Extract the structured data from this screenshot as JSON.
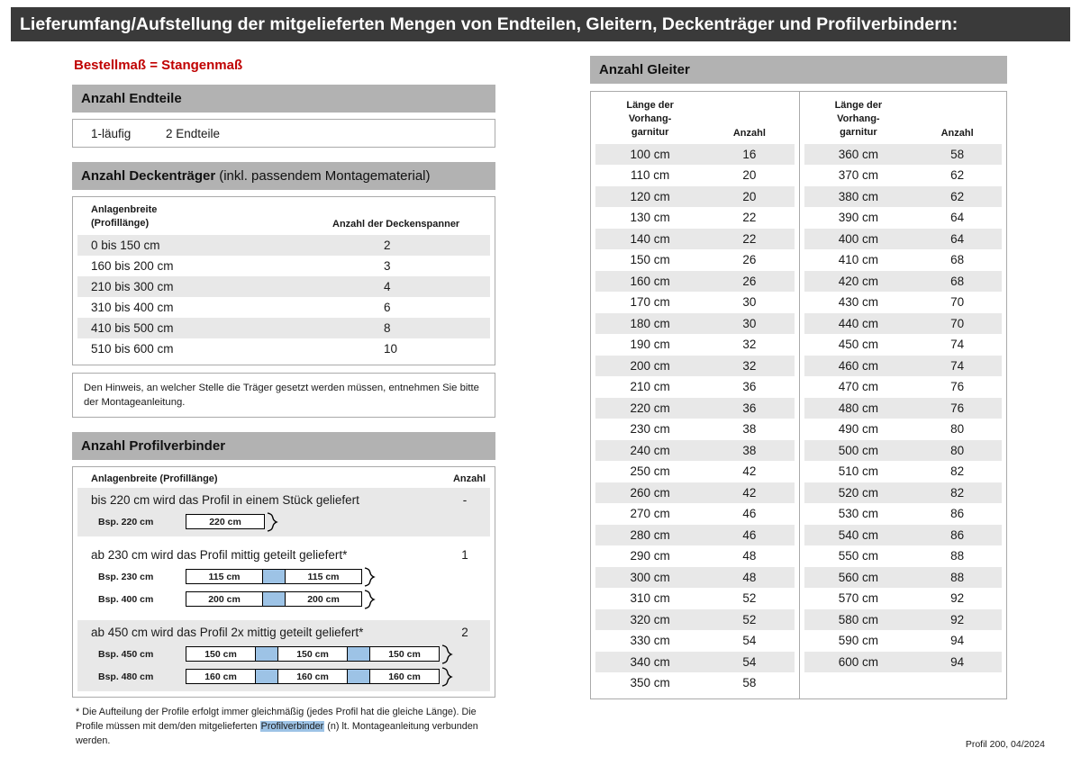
{
  "colors": {
    "title_bar_bg": "#3a3a3a",
    "section_bar_bg": "#b2b2b2",
    "accent_red": "#c00000",
    "row_shade": "#e8e8e8",
    "connector_blue": "#9dc3e6",
    "highlight_blue": "#9dc3e6",
    "border_gray": "#aaaaaa"
  },
  "page": {
    "title": "Lieferumfang/Aufstellung der mitgelieferten Mengen von Endteilen, Gleitern, Deckenträger und Profilverbindern:",
    "order_note": "Bestellmaß = Stangenmaß",
    "footer": "Profil 200, 04/2024"
  },
  "endteile": {
    "header": "Anzahl Endteile",
    "row": {
      "label": "1-läufig",
      "value": "2 Endteile"
    }
  },
  "deckentraeger": {
    "header_bold": "Anzahl Deckenträger",
    "header_rest": "(inkl. passendem Montagematerial)",
    "col_width": "Anlagenbreite\n(Profillänge)",
    "col_count": "Anzahl der Deckenspanner",
    "rows": [
      {
        "range": "0 bis 150 cm",
        "count": "2"
      },
      {
        "range": "160 bis 200 cm",
        "count": "3"
      },
      {
        "range": "210 bis 300 cm",
        "count": "4"
      },
      {
        "range": "310 bis 400 cm",
        "count": "6"
      },
      {
        "range": "410 bis 500 cm",
        "count": "8"
      },
      {
        "range": "510 bis 600 cm",
        "count": "10"
      }
    ],
    "note": "Den Hinweis, an welcher Stelle die Träger gesetzt werden müssen, entnehmen Sie bitte der Montageanleitung."
  },
  "profilverbinder": {
    "header": "Anzahl Profilverbinder",
    "col_width": "Anlagenbreite (Profillänge)",
    "col_count": "Anzahl",
    "sections": [
      {
        "text": "bis 220 cm wird das Profil in einem Stück geliefert",
        "count": "-",
        "examples": [
          {
            "label": "Bsp. 220 cm",
            "segments": [
              "220 cm"
            ]
          }
        ]
      },
      {
        "text": "ab 230 cm wird das Profil mittig geteilt geliefert*",
        "count": "1",
        "examples": [
          {
            "label": "Bsp. 230 cm",
            "segments": [
              "115 cm",
              "115 cm"
            ]
          },
          {
            "label": "Bsp. 400 cm",
            "segments": [
              "200 cm",
              "200 cm"
            ]
          }
        ]
      },
      {
        "text": "ab 450 cm wird das Profil 2x mittig geteilt geliefert*",
        "count": "2",
        "examples": [
          {
            "label": "Bsp. 450 cm",
            "segments": [
              "150 cm",
              "150 cm",
              "150 cm"
            ]
          },
          {
            "label": "Bsp. 480 cm",
            "segments": [
              "160 cm",
              "160 cm",
              "160 cm"
            ]
          }
        ]
      }
    ],
    "footnote_pre": "* Die Aufteilung der Profile erfolgt immer gleichmäßig (jedes Profil hat die gleiche Länge). Die Profile müssen mit dem/den mitgelieferten ",
    "footnote_highlight": "Profilverbinder",
    "footnote_post": " (n) lt. Montageanleitung verbunden werden."
  },
  "gleiter": {
    "header": "Anzahl Gleiter",
    "col_length": "Länge der\nVorhang-\ngarnitur",
    "col_count": "Anzahl",
    "left_rows": [
      {
        "length": "100 cm",
        "count": "16"
      },
      {
        "length": "110 cm",
        "count": "20"
      },
      {
        "length": "120 cm",
        "count": "20"
      },
      {
        "length": "130 cm",
        "count": "22"
      },
      {
        "length": "140 cm",
        "count": "22"
      },
      {
        "length": "150 cm",
        "count": "26"
      },
      {
        "length": "160 cm",
        "count": "26"
      },
      {
        "length": "170 cm",
        "count": "30"
      },
      {
        "length": "180 cm",
        "count": "30"
      },
      {
        "length": "190 cm",
        "count": "32"
      },
      {
        "length": "200 cm",
        "count": "32"
      },
      {
        "length": "210 cm",
        "count": "36"
      },
      {
        "length": "220 cm",
        "count": "36"
      },
      {
        "length": "230 cm",
        "count": "38"
      },
      {
        "length": "240 cm",
        "count": "38"
      },
      {
        "length": "250 cm",
        "count": "42"
      },
      {
        "length": "260 cm",
        "count": "42"
      },
      {
        "length": "270 cm",
        "count": "46"
      },
      {
        "length": "280 cm",
        "count": "46"
      },
      {
        "length": "290 cm",
        "count": "48"
      },
      {
        "length": "300 cm",
        "count": "48"
      },
      {
        "length": "310 cm",
        "count": "52"
      },
      {
        "length": "320 cm",
        "count": "52"
      },
      {
        "length": "330 cm",
        "count": "54"
      },
      {
        "length": "340 cm",
        "count": "54"
      },
      {
        "length": "350 cm",
        "count": "58"
      }
    ],
    "right_rows": [
      {
        "length": "360 cm",
        "count": "58"
      },
      {
        "length": "370 cm",
        "count": "62"
      },
      {
        "length": "380 cm",
        "count": "62"
      },
      {
        "length": "390 cm",
        "count": "64"
      },
      {
        "length": "400 cm",
        "count": "64"
      },
      {
        "length": "410 cm",
        "count": "68"
      },
      {
        "length": "420 cm",
        "count": "68"
      },
      {
        "length": "430 cm",
        "count": "70"
      },
      {
        "length": "440 cm",
        "count": "70"
      },
      {
        "length": "450 cm",
        "count": "74"
      },
      {
        "length": "460 cm",
        "count": "74"
      },
      {
        "length": "470 cm",
        "count": "76"
      },
      {
        "length": "480 cm",
        "count": "76"
      },
      {
        "length": "490 cm",
        "count": "80"
      },
      {
        "length": "500 cm",
        "count": "80"
      },
      {
        "length": "510 cm",
        "count": "82"
      },
      {
        "length": "520 cm",
        "count": "82"
      },
      {
        "length": "530 cm",
        "count": "86"
      },
      {
        "length": "540 cm",
        "count": "86"
      },
      {
        "length": "550 cm",
        "count": "88"
      },
      {
        "length": "560 cm",
        "count": "88"
      },
      {
        "length": "570 cm",
        "count": "92"
      },
      {
        "length": "580 cm",
        "count": "92"
      },
      {
        "length": "590 cm",
        "count": "94"
      },
      {
        "length": "600 cm",
        "count": "94"
      }
    ]
  }
}
